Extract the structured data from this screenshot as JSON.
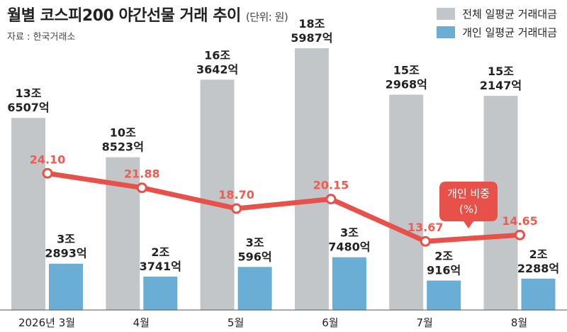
{
  "header": {
    "title": "월별 코스피200 야간선물 거래 추이",
    "unit": "(단위: 원)",
    "source": "자료 : 한국거래소"
  },
  "chart_data": {
    "type": "bar",
    "categories": [
      "2026년 3월",
      "4월",
      "5월",
      "6월",
      "7월",
      "8월"
    ],
    "series": [
      {
        "name": "전체 일평균 거래대금",
        "values": [
          13650700000000,
          10852300000000,
          16364200000000,
          18598700000000,
          15296800000000,
          15214700000000
        ],
        "labels": [
          [
            "13조",
            "6507억"
          ],
          [
            "10조",
            "8523억"
          ],
          [
            "16조",
            "3642억"
          ],
          [
            "18조",
            "5987억"
          ],
          [
            "15조",
            "2968억"
          ],
          [
            "15조",
            "2147억"
          ]
        ],
        "color": "#c3c6c9"
      },
      {
        "name": "개인 일평균 거래대금",
        "values": [
          3289300000000,
          2374100000000,
          3059600000000,
          3748000000000,
          2091600000000,
          2228800000000
        ],
        "labels": [
          [
            "3조",
            "2893억"
          ],
          [
            "2조",
            "3741억"
          ],
          [
            "3조",
            "596억"
          ],
          [
            "3조",
            "7480억"
          ],
          [
            "2조",
            "916억"
          ],
          [
            "2조",
            "2288억"
          ]
        ],
        "color": "#6aaed6"
      }
    ],
    "line": {
      "name": "개인 비중",
      "unit": "(%)",
      "values": [
        24.1,
        21.88,
        18.7,
        20.15,
        13.67,
        14.65
      ],
      "labels": [
        "24.10",
        "21.88",
        "18.70",
        "20.15",
        "13.67",
        "14.65"
      ],
      "color": "#e8504a",
      "label_color": "#ef5c4f"
    },
    "ylim": [
      0,
      19000000000000
    ],
    "legend_position": "top-right",
    "grid": false
  }
}
